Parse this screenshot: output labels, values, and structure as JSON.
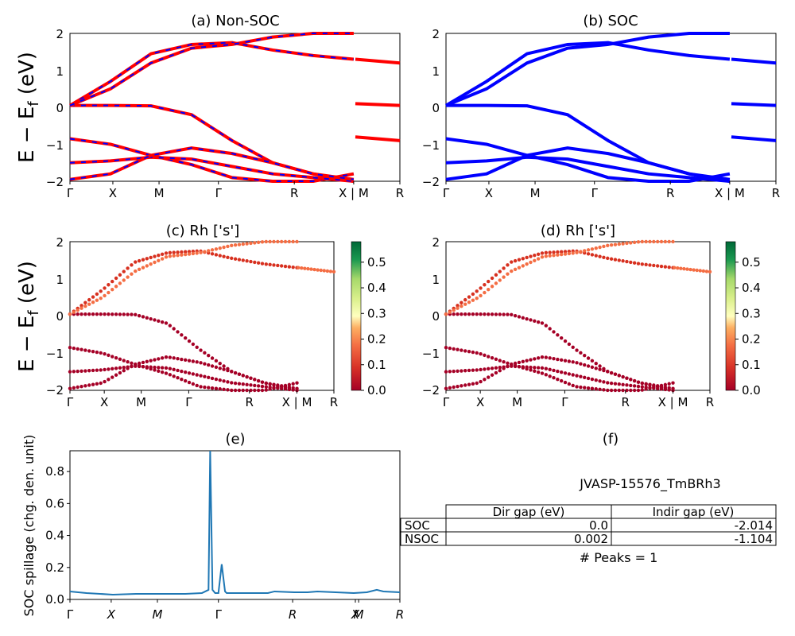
{
  "figure_id": "JVASP-15576_TmBRh3",
  "chart_data": [
    {
      "id": "a",
      "type": "line",
      "title": "(a) Non-SOC",
      "ylabel": "E − E_f (eV)",
      "ylim": [
        -2,
        2
      ],
      "yticks": [
        -2,
        -1,
        0,
        1,
        2
      ],
      "xtick_labels": [
        "Γ",
        "X",
        "M",
        "Γ",
        "R",
        "X | M",
        "R"
      ],
      "series": [
        {
          "color": "#ff0000",
          "style": "solid red with blue dash overlay",
          "bands": [
            [
              0.05,
              0.05,
              0.04,
              -0.2,
              -0.9,
              -1.5,
              -1.8,
              -2.0
            ],
            [
              -0.85,
              -1.0,
              -1.3,
              -1.55,
              -1.9,
              -2.0,
              -2.0,
              -1.8
            ],
            [
              -1.5,
              -1.45,
              -1.35,
              -1.4,
              -1.6,
              -1.8,
              -1.9,
              -2.0
            ],
            [
              -1.95,
              -1.8,
              -1.3,
              -1.1,
              -1.25,
              -1.5,
              -1.8,
              -1.95
            ],
            [
              0.05,
              0.7,
              1.45,
              1.7,
              1.75,
              1.55,
              1.4,
              1.3
            ],
            [
              0.05,
              0.5,
              1.2,
              1.6,
              1.7,
              1.9,
              2.0,
              2.0
            ]
          ]
        }
      ],
      "xticks_pos": [
        0,
        0.13,
        0.27,
        0.45,
        0.68,
        0.86,
        1.0
      ]
    },
    {
      "id": "b",
      "type": "line",
      "title": "(b) SOC",
      "ylim": [
        -2,
        2
      ],
      "yticks": [
        -2,
        -1,
        0,
        1,
        2
      ],
      "xtick_labels": [
        "Γ",
        "X",
        "M",
        "Γ",
        "R",
        "X | M",
        "R"
      ],
      "series": [
        {
          "color": "#0000ff",
          "style": "solid blue",
          "bands": [
            [
              0.05,
              0.05,
              0.04,
              -0.2,
              -0.9,
              -1.5,
              -1.8,
              -2.0
            ],
            [
              -0.85,
              -1.0,
              -1.3,
              -1.55,
              -1.9,
              -2.0,
              -2.0,
              -1.8
            ],
            [
              -1.5,
              -1.45,
              -1.35,
              -1.4,
              -1.6,
              -1.8,
              -1.9,
              -2.0
            ],
            [
              -1.95,
              -1.8,
              -1.3,
              -1.1,
              -1.25,
              -1.5,
              -1.8,
              -1.95
            ],
            [
              0.05,
              0.7,
              1.45,
              1.7,
              1.75,
              1.55,
              1.4,
              1.3
            ],
            [
              0.05,
              0.5,
              1.2,
              1.6,
              1.7,
              1.9,
              2.0,
              2.0
            ]
          ]
        }
      ]
    },
    {
      "id": "c",
      "type": "scatter",
      "title": "(c)  Rh ['s']",
      "ylabel": "E − E_f (eV)",
      "ylim": [
        -2,
        2
      ],
      "colorbar": {
        "label": "",
        "range": [
          0.0,
          0.58
        ],
        "ticks": [
          0.0,
          0.1,
          0.2,
          0.3,
          0.4,
          0.5
        ],
        "colormap": "RdYlGn"
      },
      "xtick_labels": [
        "Γ",
        "X",
        "M",
        "Γ",
        "R",
        "X | M",
        "R"
      ]
    },
    {
      "id": "d",
      "type": "scatter",
      "title": "(d) Rh ['s']",
      "ylim": [
        -2,
        2
      ],
      "colorbar": {
        "label": "",
        "range": [
          0.0,
          0.58
        ],
        "ticks": [
          0.0,
          0.1,
          0.2,
          0.3,
          0.4,
          0.5
        ],
        "colormap": "RdYlGn"
      },
      "xtick_labels": [
        "Γ",
        "X",
        "M",
        "Γ",
        "R",
        "X | M",
        "R"
      ]
    },
    {
      "id": "e",
      "type": "line",
      "title": "(e)",
      "ylabel": "SOC spillage (chg. den. unit)",
      "ylim": [
        0.0,
        0.93
      ],
      "yticks": [
        0.0,
        0.2,
        0.4,
        0.6,
        0.8
      ],
      "xtick_labels": [
        "Γ",
        "X",
        "M",
        "Γ",
        "R",
        "X",
        "M",
        "R"
      ],
      "series": [
        {
          "color": "#1f77b4",
          "x": [
            0,
            0.05,
            0.13,
            0.2,
            0.27,
            0.35,
            0.4,
            0.42,
            0.425,
            0.432,
            0.44,
            0.45,
            0.46,
            0.47,
            0.475,
            0.48,
            0.49,
            0.5,
            0.6,
            0.62,
            0.68,
            0.72,
            0.75,
            0.86,
            0.9,
            0.93,
            0.95,
            1.0
          ],
          "y": [
            0.05,
            0.04,
            0.03,
            0.035,
            0.035,
            0.035,
            0.04,
            0.06,
            0.93,
            0.06,
            0.04,
            0.04,
            0.22,
            0.05,
            0.04,
            0.04,
            0.04,
            0.04,
            0.04,
            0.05,
            0.045,
            0.045,
            0.05,
            0.04,
            0.045,
            0.06,
            0.05,
            0.045
          ]
        }
      ]
    }
  ],
  "panel_f": {
    "title": "(f)",
    "name": "JVASP-15576_TmBRh3",
    "table": {
      "columns": [
        "Dir gap (eV)",
        "Indir gap (eV)"
      ],
      "rows": [
        {
          "label": "SOC",
          "dir": "0.0",
          "indir": "-2.014"
        },
        {
          "label": "NSOC",
          "dir": "0.002",
          "indir": "-1.104"
        }
      ]
    },
    "peaks": "# Peaks = 1"
  }
}
